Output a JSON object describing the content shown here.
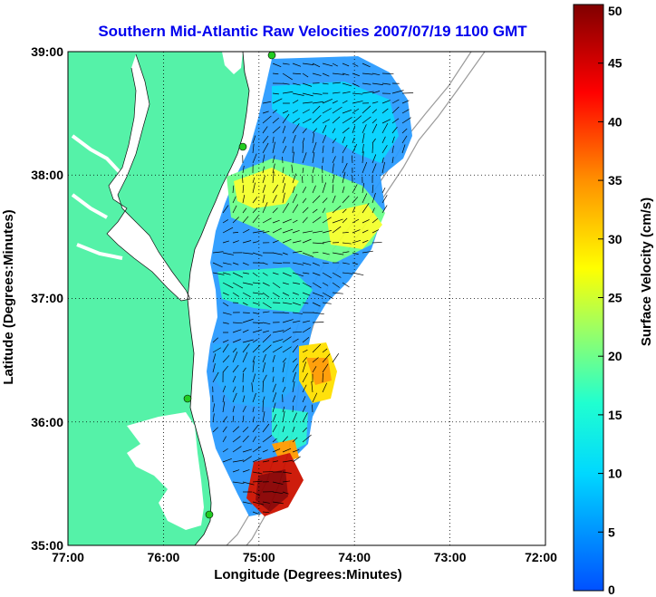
{
  "title": "Southern Mid-Atlantic Raw Velocities 2007/07/19 1100 GMT",
  "x_axis": {
    "label": "Longitude (Degrees:Minutes)",
    "ticks": [
      "77:00",
      "76:00",
      "75:00",
      "74:00",
      "73:00",
      "72:00"
    ]
  },
  "y_axis": {
    "label": "Latitude (Degrees:Minutes)",
    "ticks": [
      "39:00",
      "38:00",
      "37:00",
      "36:00",
      "35:00"
    ]
  },
  "colorbar": {
    "label": "Surface Velocity (cm/s)",
    "ticks": [
      "50",
      "45",
      "40",
      "35",
      "30",
      "25",
      "20",
      "15",
      "10",
      "5",
      "0"
    ],
    "min": 0,
    "max": 50
  },
  "colors": {
    "land": "#55f2a8",
    "title": "#0000ee",
    "stations": "#22cc22"
  }
}
